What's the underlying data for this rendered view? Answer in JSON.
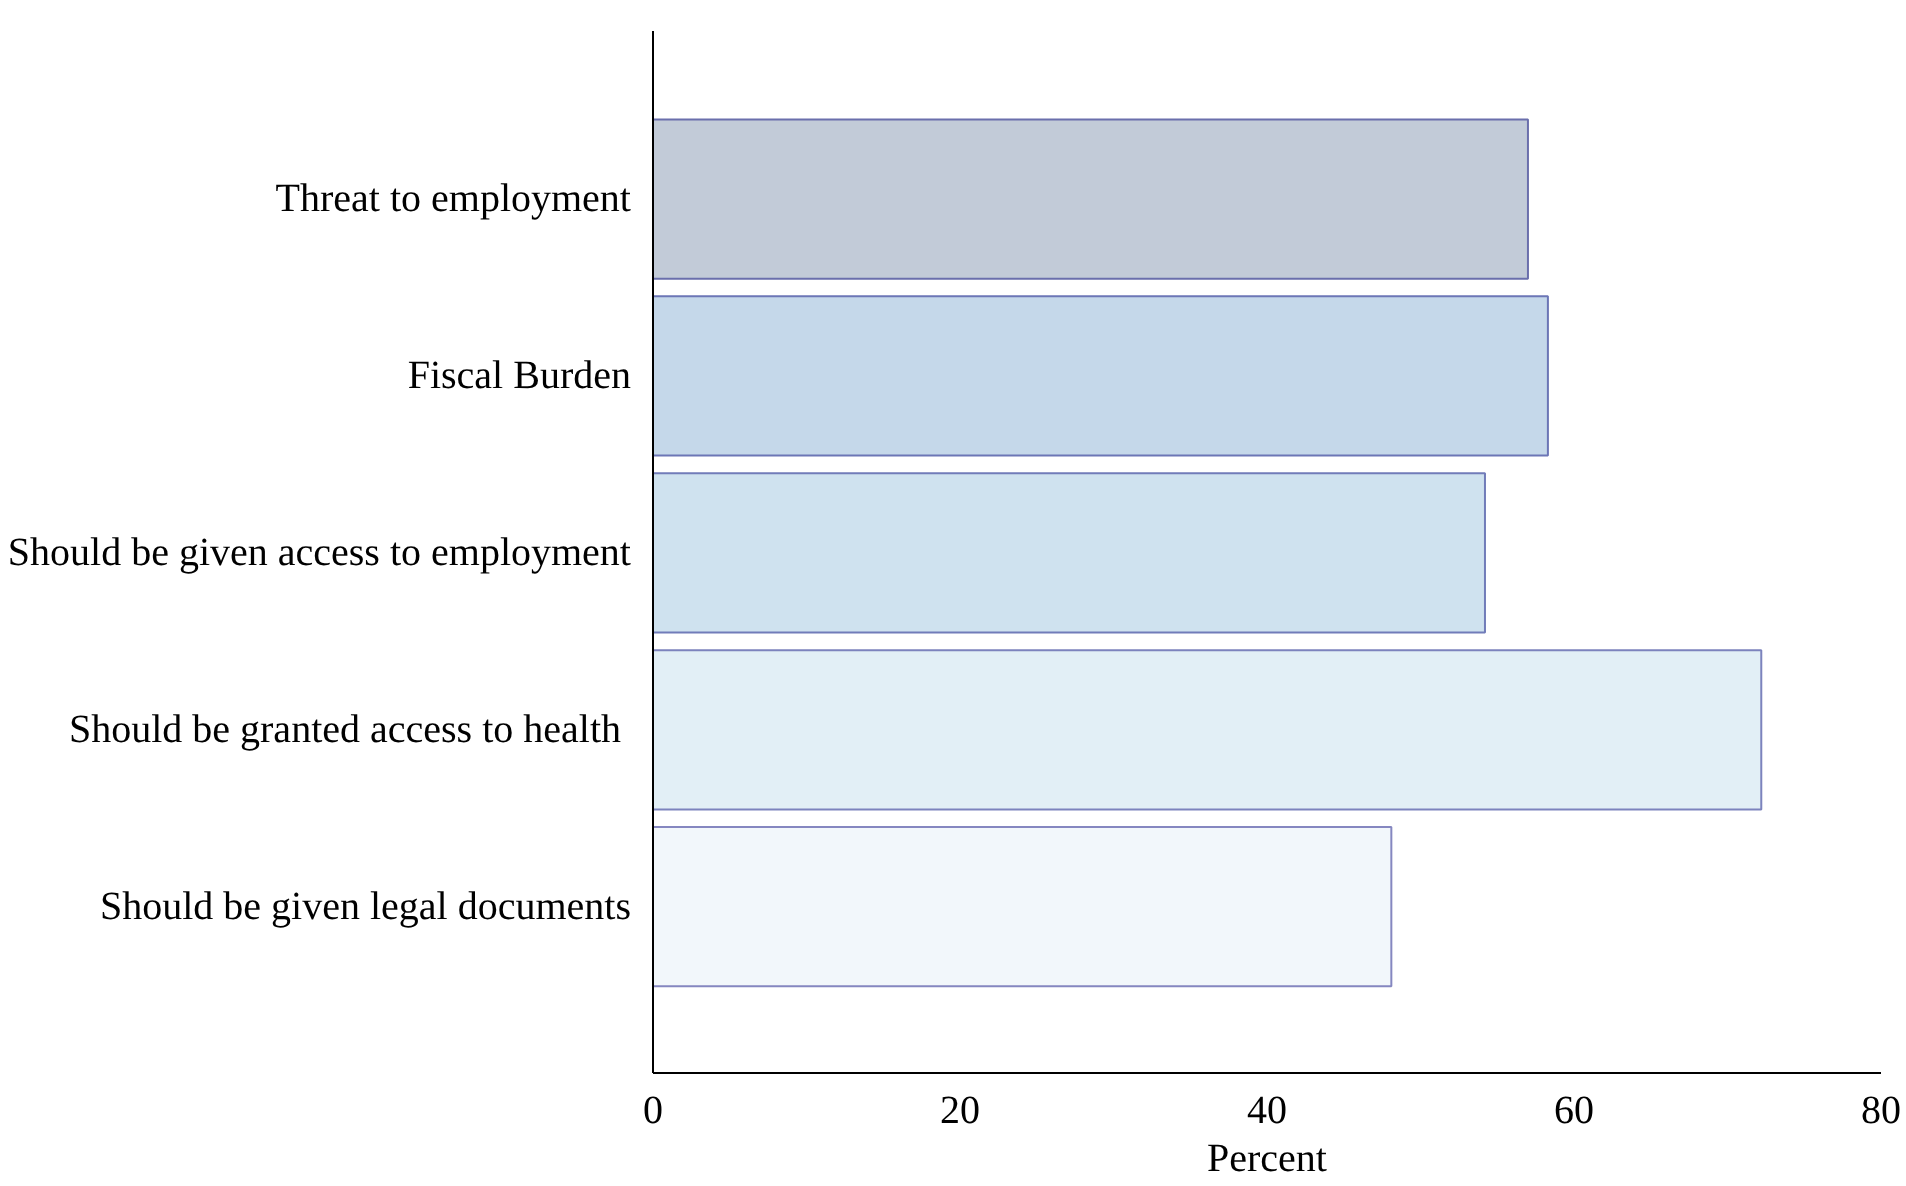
{
  "chart_data": {
    "type": "bar",
    "orientation": "horizontal",
    "xlabel": "Percent",
    "categories": [
      "Threat to employment",
      "Fiscal Burden",
      "Should be given access to employment",
      "Should be granted access to health ",
      "Should be given legal documents"
    ],
    "values": [
      57,
      58.3,
      54.2,
      72.2,
      48.1
    ],
    "colors": [
      "#c2cbd8",
      "#c5d8ea",
      "#cfe2ef",
      "#e2eff6",
      "#f2f7fb"
    ],
    "xlim": [
      0,
      80
    ],
    "xticks": [
      0,
      20,
      40,
      60,
      80
    ],
    "grid": false
  }
}
